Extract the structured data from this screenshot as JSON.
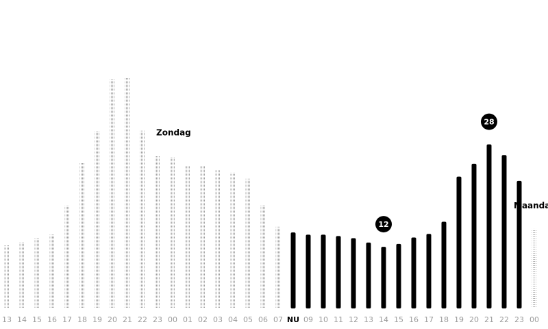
{
  "chart_data": {
    "type": "bar",
    "title": "",
    "xlabel": "",
    "ylabel": "",
    "ylim": [
      0,
      33
    ],
    "grid": false,
    "legend": "none",
    "categories": [
      "13",
      "14",
      "15",
      "16",
      "17",
      "18",
      "19",
      "20",
      "21",
      "22",
      "23",
      "00",
      "01",
      "02",
      "03",
      "04",
      "05",
      "06",
      "07",
      "NU",
      "09",
      "10",
      "11",
      "12",
      "13",
      "14",
      "15",
      "16",
      "17",
      "18",
      "19",
      "20",
      "21",
      "22",
      "23",
      "00"
    ],
    "values": [
      8.8,
      9.2,
      9.8,
      10.3,
      14.3,
      20.3,
      24.7,
      32.0,
      32.2,
      24.8,
      21.3,
      21.1,
      19.9,
      19.9,
      19.3,
      18.9,
      18.1,
      14.4,
      11.4,
      10.6,
      10.3,
      10.3,
      10.1,
      9.8,
      9.2,
      8.6,
      9.0,
      9.9,
      10.4,
      12.1,
      18.4,
      20.2,
      22.9,
      21.4,
      17.8,
      11.1
    ],
    "segments": [
      {
        "name": "past",
        "start": 0,
        "end": 18,
        "color": "#9c9c9c",
        "pattern": "dotted"
      },
      {
        "name": "forecast",
        "start": 19,
        "end": 34,
        "color": "#000000",
        "pattern": "solid"
      },
      {
        "name": "next",
        "start": 35,
        "end": 35,
        "color": "#b0b0b0",
        "pattern": "dotted"
      }
    ],
    "now_index": 19,
    "day_labels": [
      {
        "text": "Zondag",
        "index": 10
      },
      {
        "text": "Maandag",
        "index": 35
      }
    ],
    "badges": [
      {
        "value": "12",
        "index": 25
      },
      {
        "value": "28",
        "index": 32
      }
    ]
  }
}
